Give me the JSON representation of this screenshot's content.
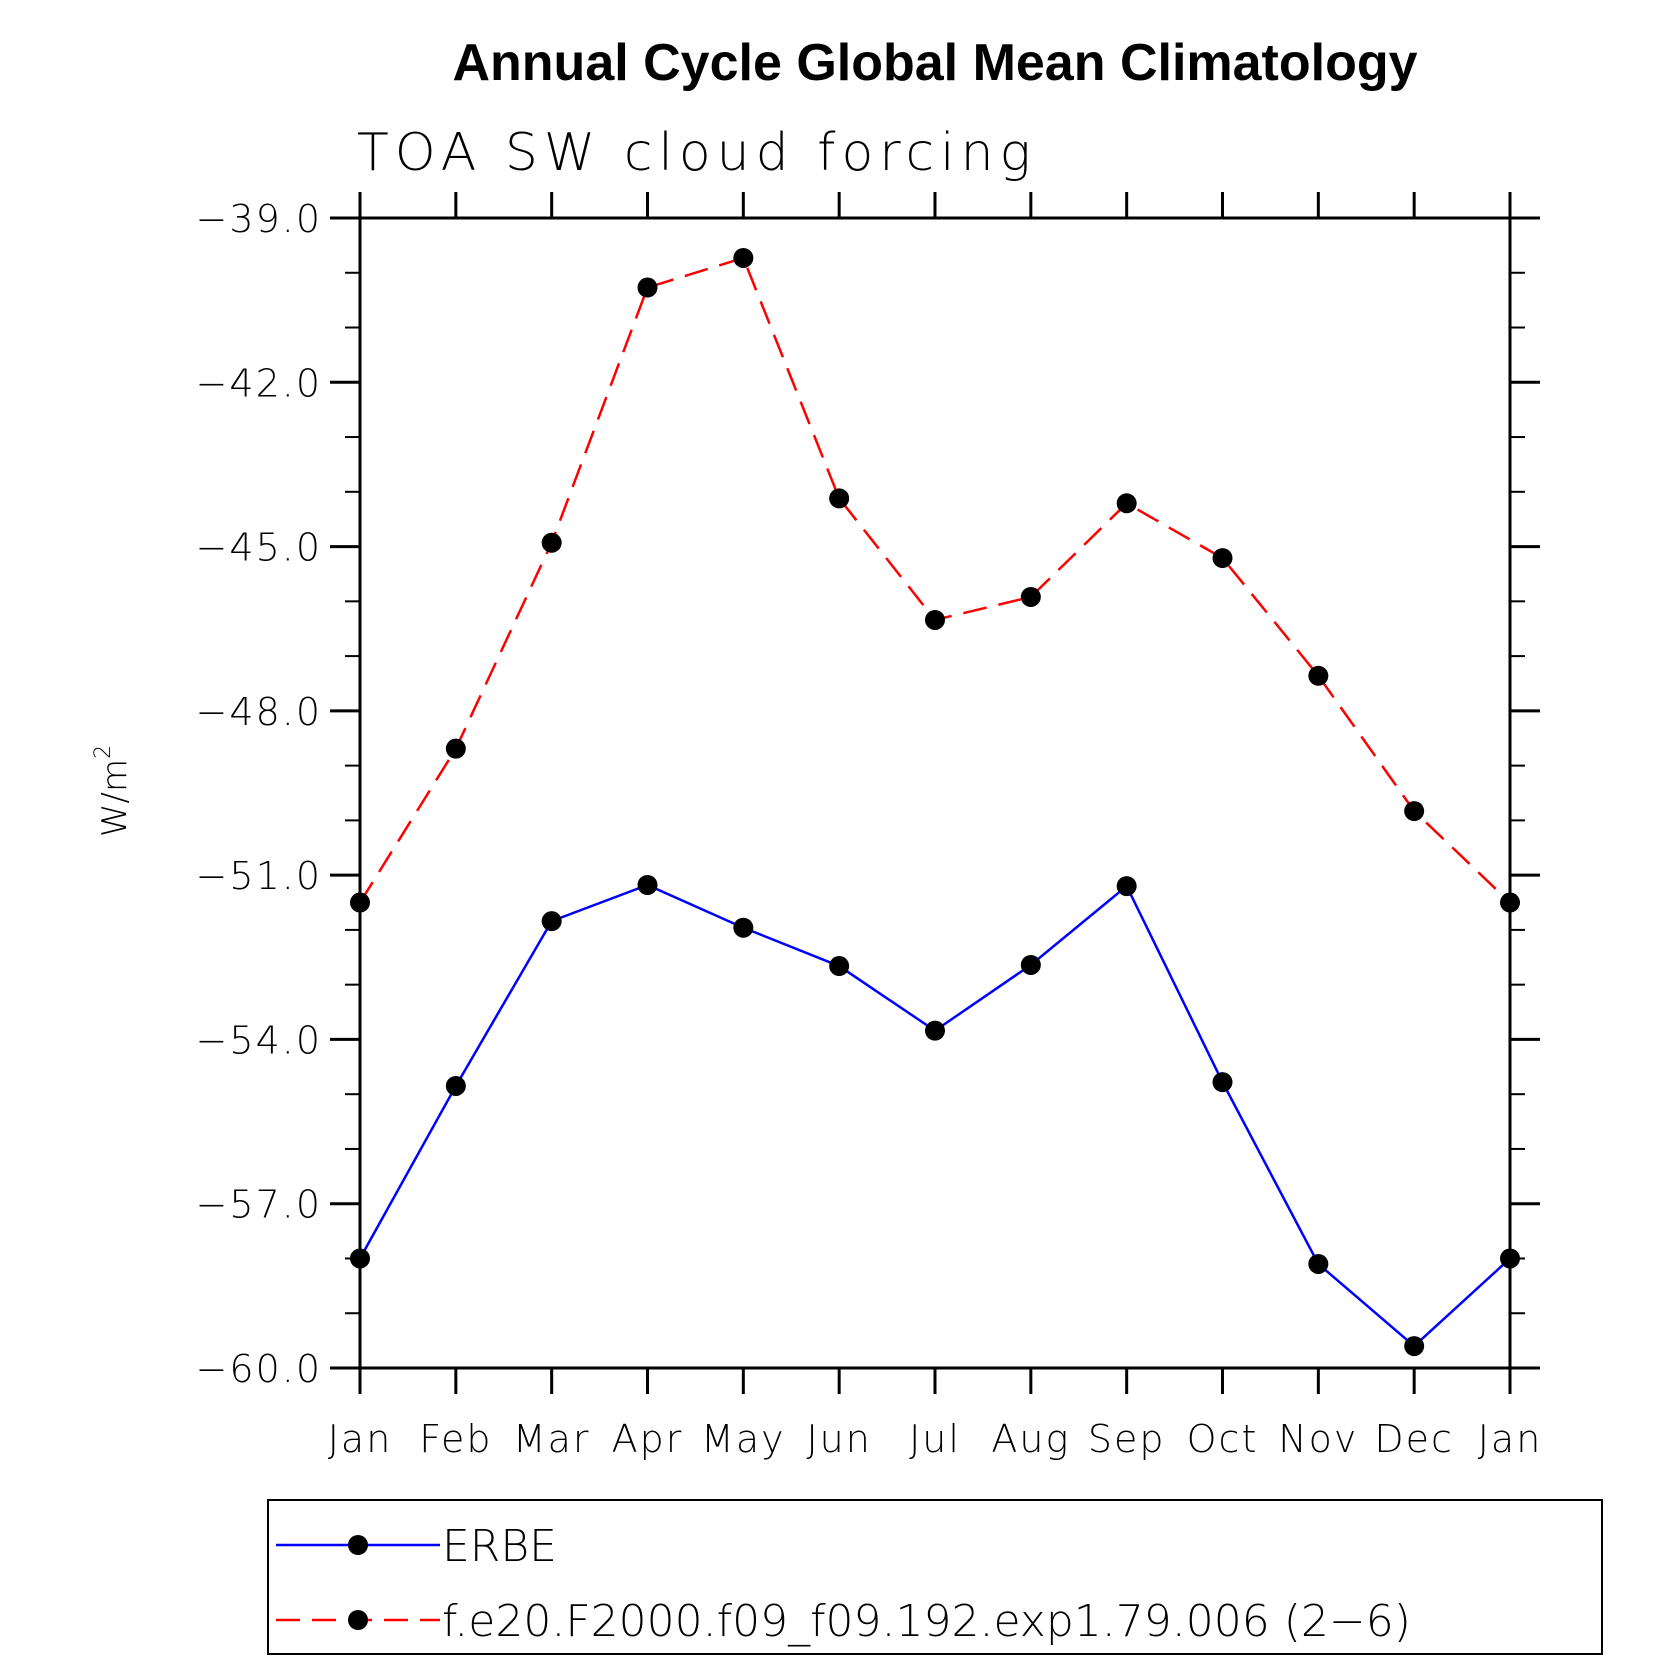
{
  "chart_data": {
    "type": "line",
    "title": "Annual Cycle Global Mean Climatology",
    "subtitle": "TOA SW cloud forcing",
    "ylabel": "W/m",
    "ylabel_superscript": "2",
    "ylim": [
      -60.0,
      -39.0
    ],
    "yticks": [
      -39.0,
      -42.0,
      -45.0,
      -48.0,
      -51.0,
      -54.0,
      -57.0,
      -60.0
    ],
    "ytick_labels": [
      "−39.0",
      "−42.0",
      "−45.0",
      "−48.0",
      "−51.0",
      "−54.0",
      "−57.0",
      "−60.0"
    ],
    "categories": [
      "Jan",
      "Feb",
      "Mar",
      "Apr",
      "May",
      "Jun",
      "Jul",
      "Aug",
      "Sep",
      "Oct",
      "Nov",
      "Dec",
      "Jan"
    ],
    "grid": false,
    "legend_position": "bottom",
    "series": [
      {
        "name": "ERBE",
        "color": "#0000ff",
        "dash": "solid",
        "values": [
          -58.0,
          -54.85,
          -51.84,
          -51.18,
          -51.96,
          -52.66,
          -53.84,
          -52.64,
          -51.2,
          -54.78,
          -58.1,
          -59.6,
          -58.0
        ]
      },
      {
        "name": "f.e20.F2000.f09_f09.192.exp1.79.006 (2−6)",
        "color": "#ff0000",
        "dash": "dashed",
        "values": [
          -51.5,
          -48.69,
          -44.93,
          -40.27,
          -39.73,
          -44.12,
          -46.34,
          -45.92,
          -44.21,
          -45.21,
          -47.36,
          -49.83,
          -51.5
        ]
      }
    ]
  }
}
